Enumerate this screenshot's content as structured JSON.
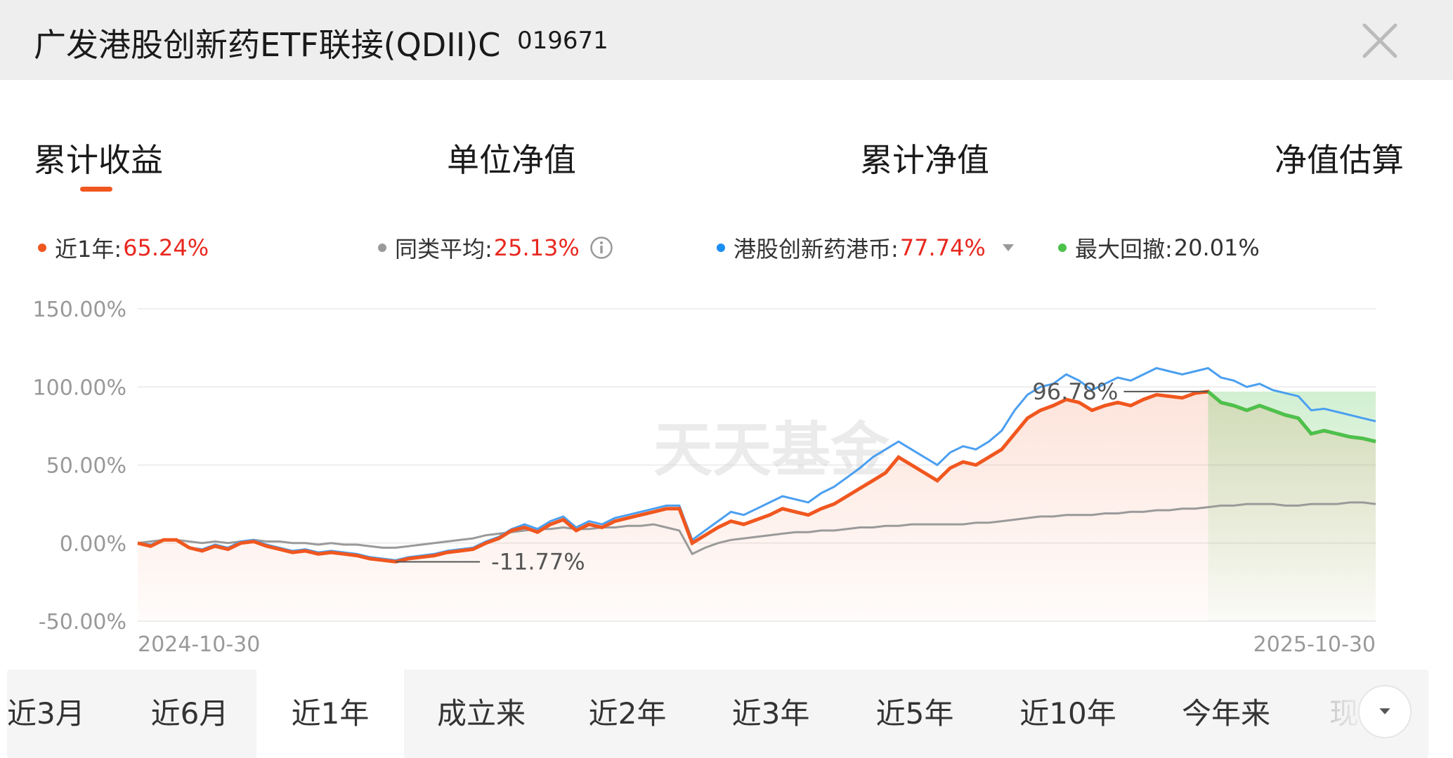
{
  "header": {
    "title": "广发港股创新药ETF联接(QDII)C",
    "code": "019671"
  },
  "tabs": [
    {
      "label": "累计收益",
      "active": true
    },
    {
      "label": "单位净值",
      "active": false
    },
    {
      "label": "累计净值",
      "active": false
    },
    {
      "label": "净值估算",
      "active": false
    }
  ],
  "legend": [
    {
      "label": "近1年:",
      "value": "65.24%",
      "color": "#f0571f",
      "value_color": "#e8281f"
    },
    {
      "label": "同类平均:",
      "value": "25.13%",
      "color": "#9a9a9a",
      "value_color": "#e8281f",
      "icon": "info-icon"
    },
    {
      "label": "港股创新药港币:",
      "value": "77.74%",
      "color": "#1b8ef2",
      "value_color": "#e8281f",
      "icon": "dropdown-icon"
    },
    {
      "label": "最大回撤:",
      "value": "20.01%",
      "color": "#4cc24c",
      "value_color": "#333333"
    }
  ],
  "watermark": "天天基金",
  "chart_data": {
    "type": "line",
    "y_ticks": [
      "150.00%",
      "100.00%",
      "50.00%",
      "0.00%",
      "-50.00%"
    ],
    "ylim": [
      -50,
      150
    ],
    "x_start_label": "2024-10-30",
    "x_end_label": "2025-10-30",
    "annotations": [
      {
        "text": "-11.77%",
        "kind": "min"
      },
      {
        "text": "96.78%",
        "kind": "max"
      }
    ],
    "drawdown_color": "#4cc24c",
    "series": [
      {
        "key": "fund",
        "color": "#f0571f",
        "values": [
          0,
          -2,
          2,
          2,
          -3,
          -5,
          -2,
          -4,
          0,
          1,
          -2,
          -4,
          -6,
          -5,
          -7,
          -6,
          -7,
          -8,
          -10,
          -11,
          -12,
          -10,
          -9,
          -8,
          -6,
          -5,
          -4,
          0,
          3,
          8,
          10,
          7,
          12,
          15,
          8,
          12,
          10,
          14,
          16,
          18,
          20,
          22,
          22,
          0,
          5,
          10,
          14,
          12,
          15,
          18,
          22,
          20,
          18,
          22,
          25,
          30,
          35,
          40,
          45,
          55,
          50,
          45,
          40,
          48,
          52,
          50,
          55,
          60,
          70,
          80,
          85,
          88,
          92,
          90,
          85,
          88,
          90,
          88,
          92,
          95,
          94,
          93,
          96,
          97,
          90,
          88,
          85,
          88,
          85,
          82,
          80,
          70,
          72,
          70,
          68,
          67,
          65
        ],
        "shown_x_fractions": "evenly spaced over one year"
      },
      {
        "key": "index",
        "color": "#1b8ef2",
        "values": [
          0,
          -1,
          2,
          2,
          -3,
          -4,
          -1,
          -3,
          1,
          2,
          -1,
          -3,
          -5,
          -4,
          -6,
          -5,
          -6,
          -7,
          -9,
          -10,
          -11,
          -9,
          -8,
          -7,
          -5,
          -4,
          -3,
          1,
          4,
          9,
          12,
          9,
          14,
          17,
          10,
          14,
          12,
          16,
          18,
          20,
          22,
          24,
          24,
          2,
          8,
          14,
          20,
          18,
          22,
          26,
          30,
          28,
          26,
          32,
          36,
          42,
          48,
          55,
          60,
          65,
          60,
          55,
          50,
          58,
          62,
          60,
          65,
          72,
          85,
          95,
          100,
          102,
          108,
          104,
          98,
          102,
          106,
          104,
          108,
          112,
          110,
          108,
          110,
          112,
          106,
          104,
          100,
          102,
          98,
          96,
          94,
          85,
          86,
          84,
          82,
          80,
          78
        ]
      },
      {
        "key": "peer",
        "color": "#9a9a9a",
        "values": [
          0,
          1,
          2,
          2,
          1,
          0,
          1,
          0,
          1,
          2,
          1,
          1,
          0,
          0,
          -1,
          0,
          -1,
          -1,
          -2,
          -3,
          -3,
          -2,
          -1,
          0,
          1,
          2,
          3,
          5,
          6,
          7,
          8,
          9,
          9,
          10,
          9,
          9,
          10,
          10,
          11,
          11,
          12,
          10,
          8,
          -7,
          -3,
          0,
          2,
          3,
          4,
          5,
          6,
          7,
          7,
          8,
          8,
          9,
          10,
          10,
          11,
          11,
          12,
          12,
          12,
          12,
          12,
          13,
          13,
          14,
          15,
          16,
          17,
          17,
          18,
          18,
          18,
          19,
          19,
          20,
          20,
          21,
          21,
          22,
          22,
          23,
          24,
          24,
          25,
          25,
          25,
          24,
          24,
          25,
          25,
          25,
          26,
          26,
          25
        ]
      }
    ]
  },
  "periods": [
    {
      "label": "近3月",
      "active": false
    },
    {
      "label": "近6月",
      "active": false
    },
    {
      "label": "近1年",
      "active": true
    },
    {
      "label": "成立来",
      "active": false
    },
    {
      "label": "近2年",
      "active": false
    },
    {
      "label": "近3年",
      "active": false
    },
    {
      "label": "近5年",
      "active": false
    },
    {
      "label": "近10年",
      "active": false
    },
    {
      "label": "今年来",
      "active": false
    },
    {
      "label": "现",
      "active": false
    }
  ]
}
